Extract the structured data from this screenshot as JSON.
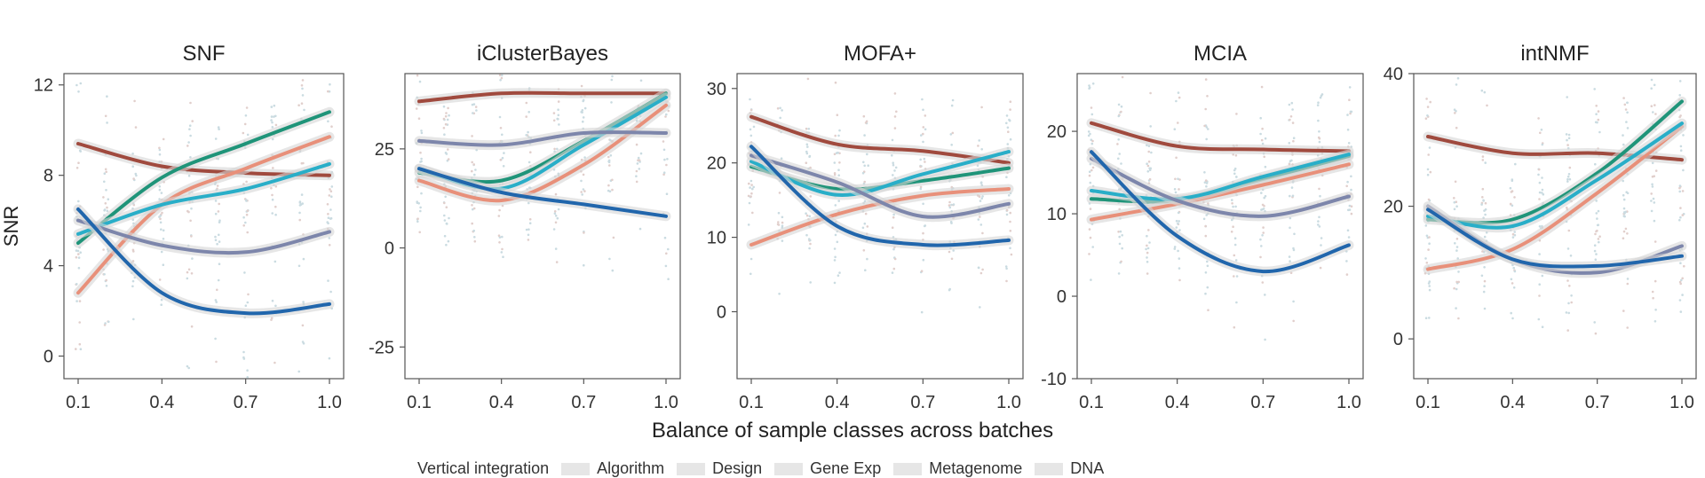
{
  "figure": {
    "y_label": "SNR",
    "x_label": "Balance of sample classes across batches",
    "legend_title": "Vertical integration"
  },
  "legend_items": [
    {
      "label": "Algorithm",
      "color": "#e8e8e8"
    },
    {
      "label": "Design",
      "color": "#e8e8e8"
    },
    {
      "label": "Gene Exp",
      "color": "#e8e8e8"
    },
    {
      "label": "Metagenome",
      "color": "#e8e8e8"
    },
    {
      "label": "DNA",
      "color": "#e8e8e8"
    }
  ],
  "series_colors": {
    "dark_red": "#a04a3e",
    "green": "#1f9479",
    "salmon": "#e8907a",
    "cyan": "#29aec8",
    "slate": "#7d86ab",
    "blue": "#2166ac"
  },
  "chart_data": [
    {
      "type": "line",
      "title": "SNF",
      "x": [
        0.1,
        0.4,
        0.7,
        1.0
      ],
      "xticks": [
        "0.1",
        "0.4",
        "0.7",
        "1.0"
      ],
      "yticks": [
        0,
        4,
        8,
        12
      ],
      "ylim": [
        -1,
        12.5
      ],
      "ylabel": "SNR",
      "series": [
        {
          "name": "dark_red",
          "values": [
            9.4,
            8.4,
            8.1,
            8.0
          ]
        },
        {
          "name": "green",
          "values": [
            5.0,
            7.9,
            9.4,
            10.8
          ]
        },
        {
          "name": "salmon",
          "values": [
            2.8,
            6.7,
            8.3,
            9.7
          ]
        },
        {
          "name": "cyan",
          "values": [
            5.4,
            6.7,
            7.4,
            8.5
          ]
        },
        {
          "name": "slate",
          "values": [
            6.0,
            4.9,
            4.6,
            5.5
          ]
        },
        {
          "name": "blue",
          "values": [
            6.5,
            2.8,
            1.9,
            2.3
          ]
        }
      ]
    },
    {
      "type": "line",
      "title": "iClusterBayes",
      "x": [
        0.1,
        0.4,
        0.7,
        1.0
      ],
      "xticks": [
        "0.1",
        "0.4",
        "0.7",
        "1.0"
      ],
      "yticks": [
        -25,
        0,
        25
      ],
      "ylim": [
        -33,
        44
      ],
      "series": [
        {
          "name": "dark_red",
          "values": [
            37,
            39,
            39,
            39
          ]
        },
        {
          "name": "green",
          "values": [
            19,
            17,
            27,
            39
          ]
        },
        {
          "name": "salmon",
          "values": [
            17,
            12,
            21,
            36
          ]
        },
        {
          "name": "cyan",
          "values": [
            20,
            15,
            26,
            38
          ]
        },
        {
          "name": "slate",
          "values": [
            27,
            26,
            29,
            29
          ]
        },
        {
          "name": "blue",
          "values": [
            20,
            14,
            11,
            8
          ]
        }
      ]
    },
    {
      "type": "line",
      "title": "MOFA+",
      "x": [
        0.1,
        0.4,
        0.7,
        1.0
      ],
      "xticks": [
        "0.1",
        "0.4",
        "0.7",
        "1.0"
      ],
      "yticks": [
        0,
        10,
        20,
        30
      ],
      "ylim": [
        -9,
        32
      ],
      "series": [
        {
          "name": "dark_red",
          "values": [
            26.2,
            22.5,
            21.6,
            20.0
          ]
        },
        {
          "name": "green",
          "values": [
            19.5,
            16.5,
            17.6,
            19.3
          ]
        },
        {
          "name": "salmon",
          "values": [
            9.0,
            13.1,
            15.6,
            16.5
          ]
        },
        {
          "name": "cyan",
          "values": [
            20.2,
            15.7,
            18.5,
            21.5
          ]
        },
        {
          "name": "slate",
          "values": [
            21.0,
            17.4,
            12.8,
            14.5
          ]
        },
        {
          "name": "blue",
          "values": [
            22.2,
            11.5,
            9.0,
            9.6
          ]
        }
      ]
    },
    {
      "type": "line",
      "title": "MCIA",
      "x": [
        0.1,
        0.4,
        0.7,
        1.0
      ],
      "xticks": [
        "0.1",
        "0.4",
        "0.7",
        "1.0"
      ],
      "yticks": [
        -10,
        0,
        10,
        20
      ],
      "ylim": [
        -10,
        27
      ],
      "series": [
        {
          "name": "dark_red",
          "values": [
            21.0,
            18.2,
            17.8,
            17.6
          ]
        },
        {
          "name": "green",
          "values": [
            11.8,
            11.6,
            14.2,
            17.0
          ]
        },
        {
          "name": "salmon",
          "values": [
            9.3,
            11.2,
            13.5,
            16.0
          ]
        },
        {
          "name": "cyan",
          "values": [
            12.8,
            11.8,
            14.5,
            17.2
          ]
        },
        {
          "name": "slate",
          "values": [
            16.7,
            11.6,
            9.7,
            12.1
          ]
        },
        {
          "name": "blue",
          "values": [
            17.5,
            7.3,
            3.0,
            6.2
          ]
        }
      ]
    },
    {
      "type": "line",
      "title": "intNMF",
      "x": [
        0.1,
        0.4,
        0.7,
        1.0
      ],
      "xticks": [
        "0.1",
        "0.4",
        "0.7",
        "1.0"
      ],
      "yticks": [
        0,
        20,
        40
      ],
      "ylim": [
        -6,
        40
      ],
      "series": [
        {
          "name": "dark_red",
          "values": [
            30.5,
            28.0,
            28.0,
            27.0
          ]
        },
        {
          "name": "green",
          "values": [
            18.0,
            18.0,
            25.0,
            35.8
          ]
        },
        {
          "name": "salmon",
          "values": [
            10.5,
            13.5,
            22.0,
            32.0
          ]
        },
        {
          "name": "cyan",
          "values": [
            18.5,
            17.0,
            24.0,
            32.5
          ]
        },
        {
          "name": "slate",
          "values": [
            20.0,
            12.0,
            10.0,
            14.0
          ]
        },
        {
          "name": "blue",
          "values": [
            19.5,
            12.0,
            11.0,
            12.5
          ]
        }
      ]
    }
  ]
}
